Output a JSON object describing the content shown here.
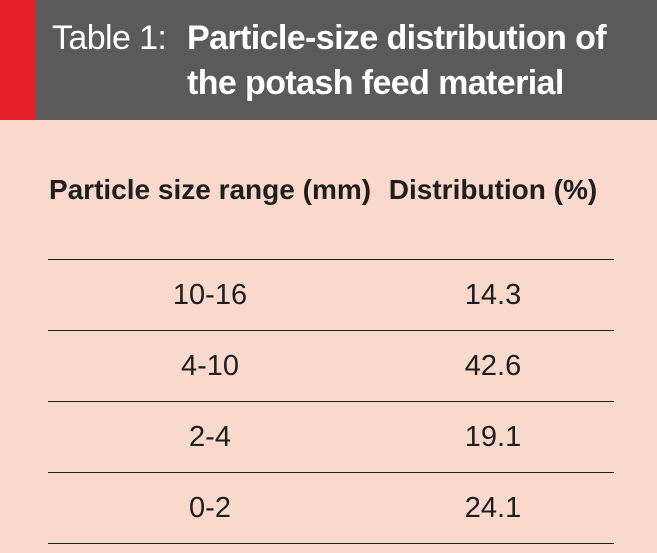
{
  "header": {
    "prefix": "Table 1:",
    "title": "Particle-size distribution of the potash feed material"
  },
  "table": {
    "columns": [
      "Particle size range (mm)",
      "Distribution (%)"
    ],
    "rows": [
      [
        "10-16",
        "14.3"
      ],
      [
        "4-10",
        "42.6"
      ],
      [
        "2-4",
        "19.1"
      ],
      [
        "0-2",
        "24.1"
      ]
    ]
  },
  "colors": {
    "accent": "#e21f27",
    "header_background": "#5b5a5a",
    "table_background": "#f9d9cc"
  }
}
